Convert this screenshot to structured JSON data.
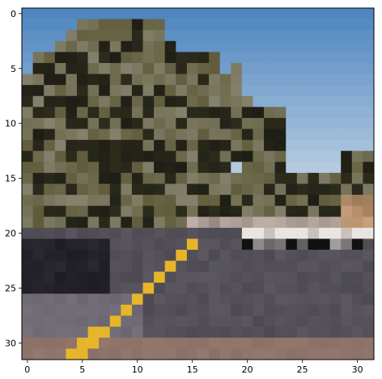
{
  "image": {
    "kind": "pixelated-photo",
    "grid": [
      32,
      32
    ],
    "description_colors": {
      "sky_top": "#4f86c0",
      "sky_bottom": "#c8d8e6",
      "foliage_dark": "#2e2e1e",
      "foliage_mid": "#5f5b3a",
      "road": "#4d4a52",
      "road_light": "#6a6570",
      "curb": "#8a7066",
      "lane_marking": "#e7b52a",
      "car_white": "#e9e5e0",
      "car_dark": "#111111"
    }
  },
  "axes": {
    "x_ticks": [
      {
        "value": 0,
        "label": "0"
      },
      {
        "value": 5,
        "label": "5"
      },
      {
        "value": 10,
        "label": "10"
      },
      {
        "value": 15,
        "label": "15"
      },
      {
        "value": 20,
        "label": "20"
      },
      {
        "value": 25,
        "label": "25"
      },
      {
        "value": 30,
        "label": "30"
      }
    ],
    "y_ticks": [
      {
        "value": 0,
        "label": "0"
      },
      {
        "value": 5,
        "label": "5"
      },
      {
        "value": 10,
        "label": "10"
      },
      {
        "value": 15,
        "label": "15"
      },
      {
        "value": 20,
        "label": "20"
      },
      {
        "value": 25,
        "label": "25"
      },
      {
        "value": 30,
        "label": "30"
      }
    ],
    "xlim": [
      -0.5,
      31.5
    ],
    "ylim": [
      31.5,
      -0.5
    ]
  }
}
